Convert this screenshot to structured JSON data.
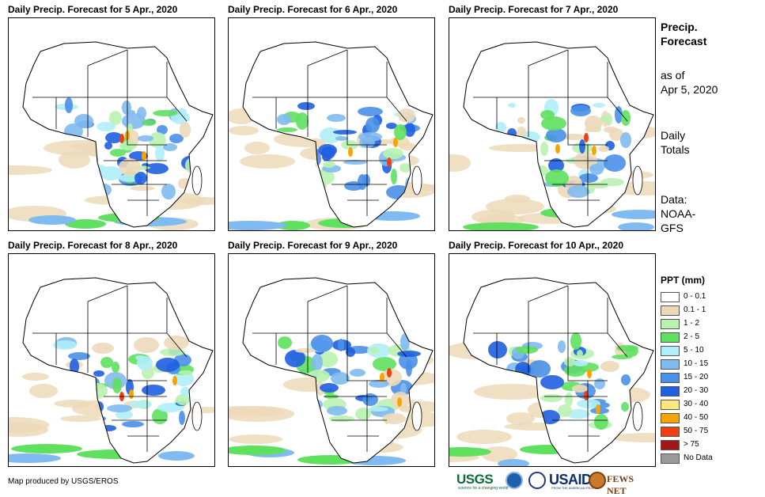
{
  "panels": [
    {
      "title": "Daily Precip. Forecast for 5 Apr., 2020"
    },
    {
      "title": "Daily Precip. Forecast for 6 Apr., 2020"
    },
    {
      "title": "Daily Precip. Forecast for 7 Apr., 2020"
    },
    {
      "title": "Daily Precip. Forecast for 8 Apr., 2020"
    },
    {
      "title": "Daily Precip. Forecast for 9 Apr., 2020"
    },
    {
      "title": "Daily Precip. Forecast for 10 Apr., 2020"
    }
  ],
  "sidebar": {
    "title_line1": "Precip.",
    "title_line2": "Forecast",
    "asof_line1": "as of",
    "asof_line2": "Apr 5, 2020",
    "totals_line1": "Daily",
    "totals_line2": "Totals",
    "data_line1": "Data:",
    "data_line2": "NOAA-",
    "data_line3": "GFS"
  },
  "legend": {
    "title": "PPT (mm)",
    "items": [
      {
        "label": "0 - 0.1",
        "color": "#ffffff"
      },
      {
        "label": "0.1 - 1",
        "color": "#ecd9b9"
      },
      {
        "label": "1 - 2",
        "color": "#b8f2b0"
      },
      {
        "label": "2 - 5",
        "color": "#5fe05f"
      },
      {
        "label": "5 - 10",
        "color": "#b0eefa"
      },
      {
        "label": "10 - 15",
        "color": "#7fbaf0"
      },
      {
        "label": "15 - 20",
        "color": "#4a90e8"
      },
      {
        "label": "20 - 30",
        "color": "#1f5fe0"
      },
      {
        "label": "30 - 40",
        "color": "#ffe680"
      },
      {
        "label": "40 - 50",
        "color": "#f5a400"
      },
      {
        "label": "50 - 75",
        "color": "#f04010"
      },
      {
        "label": "> 75",
        "color": "#a01818"
      },
      {
        "label": "No Data",
        "color": "#9a9a9a"
      }
    ]
  },
  "footer": {
    "credit": "Map produced by USGS/EROS",
    "logos": [
      "usgs-logo",
      "noaa-logo",
      "usaid-logo",
      "fews-net-logo"
    ],
    "usgs_text": "USGS",
    "usaid_text": "USAID",
    "fews_text": "FEWS NET"
  }
}
